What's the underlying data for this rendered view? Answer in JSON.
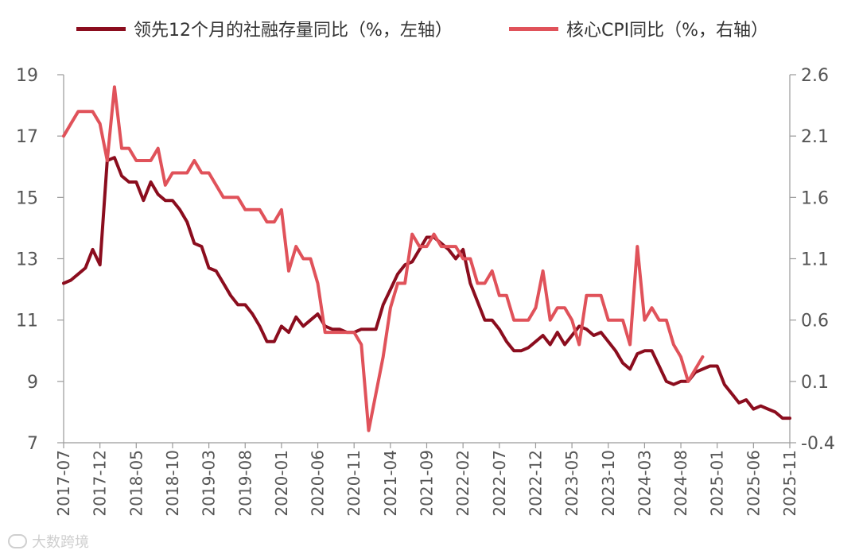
{
  "chart_data": {
    "type": "line",
    "left_axis": {
      "ylim": [
        7,
        19
      ],
      "ticks": [
        "7",
        "9",
        "11",
        "13",
        "15",
        "17",
        "19"
      ]
    },
    "right_axis": {
      "ylim": [
        -0.4,
        2.6
      ],
      "ticks": [
        "-0.4",
        "0.1",
        "0.6",
        "1.1",
        "1.6",
        "2.1",
        "2.6"
      ]
    },
    "x_range": [
      "2017-07",
      "2025-11"
    ],
    "x_ticks": [
      "2017-07",
      "2017-12",
      "2018-05",
      "2018-10",
      "2019-03",
      "2019-08",
      "2020-01",
      "2020-06",
      "2020-11",
      "2021-04",
      "2021-09",
      "2022-02",
      "2022-07",
      "2022-12",
      "2023-05",
      "2023-10",
      "2024-03",
      "2024-08",
      "2025-01",
      "2025-06",
      "2025-11"
    ],
    "grid": false,
    "legend_position": "top",
    "series": [
      {
        "name": "领先12个月的社融存量同比（%，左轴）",
        "axis": "left",
        "color": "#8b0d1e",
        "points": [
          [
            "2017-07",
            12.2
          ],
          [
            "2017-08",
            12.3
          ],
          [
            "2017-09",
            12.5
          ],
          [
            "2017-10",
            12.7
          ],
          [
            "2017-11",
            13.3
          ],
          [
            "2017-12",
            12.8
          ],
          [
            "2018-01",
            16.2
          ],
          [
            "2018-02",
            16.3
          ],
          [
            "2018-03",
            15.7
          ],
          [
            "2018-04",
            15.5
          ],
          [
            "2018-05",
            15.5
          ],
          [
            "2018-06",
            14.9
          ],
          [
            "2018-07",
            15.5
          ],
          [
            "2018-08",
            15.1
          ],
          [
            "2018-09",
            14.9
          ],
          [
            "2018-10",
            14.9
          ],
          [
            "2018-11",
            14.6
          ],
          [
            "2018-12",
            14.2
          ],
          [
            "2019-01",
            13.5
          ],
          [
            "2019-02",
            13.4
          ],
          [
            "2019-03",
            12.7
          ],
          [
            "2019-04",
            12.6
          ],
          [
            "2019-05",
            12.2
          ],
          [
            "2019-06",
            11.8
          ],
          [
            "2019-07",
            11.5
          ],
          [
            "2019-08",
            11.5
          ],
          [
            "2019-09",
            11.2
          ],
          [
            "2019-10",
            10.8
          ],
          [
            "2019-11",
            10.3
          ],
          [
            "2019-12",
            10.3
          ],
          [
            "2020-01",
            10.8
          ],
          [
            "2020-02",
            10.6
          ],
          [
            "2020-03",
            11.1
          ],
          [
            "2020-04",
            10.8
          ],
          [
            "2020-05",
            11.0
          ],
          [
            "2020-06",
            11.2
          ],
          [
            "2020-07",
            10.8
          ],
          [
            "2020-08",
            10.7
          ],
          [
            "2020-09",
            10.7
          ],
          [
            "2020-10",
            10.6
          ],
          [
            "2020-11",
            10.6
          ],
          [
            "2020-12",
            10.7
          ],
          [
            "2021-01",
            10.7
          ],
          [
            "2021-02",
            10.7
          ],
          [
            "2021-03",
            11.5
          ],
          [
            "2021-04",
            12.0
          ],
          [
            "2021-05",
            12.5
          ],
          [
            "2021-06",
            12.8
          ],
          [
            "2021-07",
            12.9
          ],
          [
            "2021-08",
            13.3
          ],
          [
            "2021-09",
            13.7
          ],
          [
            "2021-10",
            13.7
          ],
          [
            "2021-11",
            13.5
          ],
          [
            "2021-12",
            13.3
          ],
          [
            "2022-01",
            13.0
          ],
          [
            "2022-02",
            13.3
          ],
          [
            "2022-03",
            12.2
          ],
          [
            "2022-04",
            11.6
          ],
          [
            "2022-05",
            11.0
          ],
          [
            "2022-06",
            11.0
          ],
          [
            "2022-07",
            10.7
          ],
          [
            "2022-08",
            10.3
          ],
          [
            "2022-09",
            10.0
          ],
          [
            "2022-10",
            10.0
          ],
          [
            "2022-11",
            10.1
          ],
          [
            "2022-12",
            10.3
          ],
          [
            "2023-01",
            10.5
          ],
          [
            "2023-02",
            10.2
          ],
          [
            "2023-03",
            10.6
          ],
          [
            "2023-04",
            10.2
          ],
          [
            "2023-05",
            10.5
          ],
          [
            "2023-06",
            10.8
          ],
          [
            "2023-07",
            10.7
          ],
          [
            "2023-08",
            10.5
          ],
          [
            "2023-09",
            10.6
          ],
          [
            "2023-10",
            10.3
          ],
          [
            "2023-11",
            10.0
          ],
          [
            "2023-12",
            9.6
          ],
          [
            "2024-01",
            9.4
          ],
          [
            "2024-02",
            9.9
          ],
          [
            "2024-03",
            10.0
          ],
          [
            "2024-04",
            10.0
          ],
          [
            "2024-05",
            9.5
          ],
          [
            "2024-06",
            9.0
          ],
          [
            "2024-07",
            8.9
          ],
          [
            "2024-08",
            9.0
          ],
          [
            "2024-09",
            9.0
          ],
          [
            "2024-10",
            9.3
          ],
          [
            "2024-11",
            9.4
          ],
          [
            "2024-12",
            9.5
          ],
          [
            "2025-01",
            9.5
          ],
          [
            "2025-02",
            8.9
          ],
          [
            "2025-03",
            8.6
          ],
          [
            "2025-04",
            8.3
          ],
          [
            "2025-05",
            8.4
          ],
          [
            "2025-06",
            8.1
          ],
          [
            "2025-07",
            8.2
          ],
          [
            "2025-08",
            8.1
          ],
          [
            "2025-09",
            8.0
          ],
          [
            "2025-10",
            7.8
          ],
          [
            "2025-11",
            7.8
          ]
        ]
      },
      {
        "name": "核心CPI同比（%，右轴）",
        "axis": "right",
        "color": "#e0525a",
        "points": [
          [
            "2017-07",
            2.1
          ],
          [
            "2017-08",
            2.2
          ],
          [
            "2017-09",
            2.3
          ],
          [
            "2017-10",
            2.3
          ],
          [
            "2017-11",
            2.3
          ],
          [
            "2017-12",
            2.2
          ],
          [
            "2018-01",
            1.9
          ],
          [
            "2018-02",
            2.5
          ],
          [
            "2018-03",
            2.0
          ],
          [
            "2018-04",
            2.0
          ],
          [
            "2018-05",
            1.9
          ],
          [
            "2018-06",
            1.9
          ],
          [
            "2018-07",
            1.9
          ],
          [
            "2018-08",
            2.0
          ],
          [
            "2018-09",
            1.7
          ],
          [
            "2018-10",
            1.8
          ],
          [
            "2018-11",
            1.8
          ],
          [
            "2018-12",
            1.8
          ],
          [
            "2019-01",
            1.9
          ],
          [
            "2019-02",
            1.8
          ],
          [
            "2019-03",
            1.8
          ],
          [
            "2019-04",
            1.7
          ],
          [
            "2019-05",
            1.6
          ],
          [
            "2019-06",
            1.6
          ],
          [
            "2019-07",
            1.6
          ],
          [
            "2019-08",
            1.5
          ],
          [
            "2019-09",
            1.5
          ],
          [
            "2019-10",
            1.5
          ],
          [
            "2019-11",
            1.4
          ],
          [
            "2019-12",
            1.4
          ],
          [
            "2020-01",
            1.5
          ],
          [
            "2020-02",
            1.0
          ],
          [
            "2020-03",
            1.2
          ],
          [
            "2020-04",
            1.1
          ],
          [
            "2020-05",
            1.1
          ],
          [
            "2020-06",
            0.9
          ],
          [
            "2020-07",
            0.5
          ],
          [
            "2020-08",
            0.5
          ],
          [
            "2020-09",
            0.5
          ],
          [
            "2020-10",
            0.5
          ],
          [
            "2020-11",
            0.5
          ],
          [
            "2020-12",
            0.4
          ],
          [
            "2021-01",
            -0.3
          ],
          [
            "2021-02",
            0.0
          ],
          [
            "2021-03",
            0.3
          ],
          [
            "2021-04",
            0.7
          ],
          [
            "2021-05",
            0.9
          ],
          [
            "2021-06",
            0.9
          ],
          [
            "2021-07",
            1.3
          ],
          [
            "2021-08",
            1.2
          ],
          [
            "2021-09",
            1.2
          ],
          [
            "2021-10",
            1.3
          ],
          [
            "2021-11",
            1.2
          ],
          [
            "2021-12",
            1.2
          ],
          [
            "2022-01",
            1.2
          ],
          [
            "2022-02",
            1.1
          ],
          [
            "2022-03",
            1.1
          ],
          [
            "2022-04",
            0.9
          ],
          [
            "2022-05",
            0.9
          ],
          [
            "2022-06",
            1.0
          ],
          [
            "2022-07",
            0.8
          ],
          [
            "2022-08",
            0.8
          ],
          [
            "2022-09",
            0.6
          ],
          [
            "2022-10",
            0.6
          ],
          [
            "2022-11",
            0.6
          ],
          [
            "2022-12",
            0.7
          ],
          [
            "2023-01",
            1.0
          ],
          [
            "2023-02",
            0.6
          ],
          [
            "2023-03",
            0.7
          ],
          [
            "2023-04",
            0.7
          ],
          [
            "2023-05",
            0.6
          ],
          [
            "2023-06",
            0.4
          ],
          [
            "2023-07",
            0.8
          ],
          [
            "2023-08",
            0.8
          ],
          [
            "2023-09",
            0.8
          ],
          [
            "2023-10",
            0.6
          ],
          [
            "2023-11",
            0.6
          ],
          [
            "2023-12",
            0.6
          ],
          [
            "2024-01",
            0.4
          ],
          [
            "2024-02",
            1.2
          ],
          [
            "2024-03",
            0.6
          ],
          [
            "2024-04",
            0.7
          ],
          [
            "2024-05",
            0.6
          ],
          [
            "2024-06",
            0.6
          ],
          [
            "2024-07",
            0.4
          ],
          [
            "2024-08",
            0.3
          ],
          [
            "2024-09",
            0.1
          ],
          [
            "2024-10",
            0.2
          ],
          [
            "2024-11",
            0.3
          ]
        ]
      }
    ]
  },
  "watermark": {
    "text": "大数跨境"
  }
}
